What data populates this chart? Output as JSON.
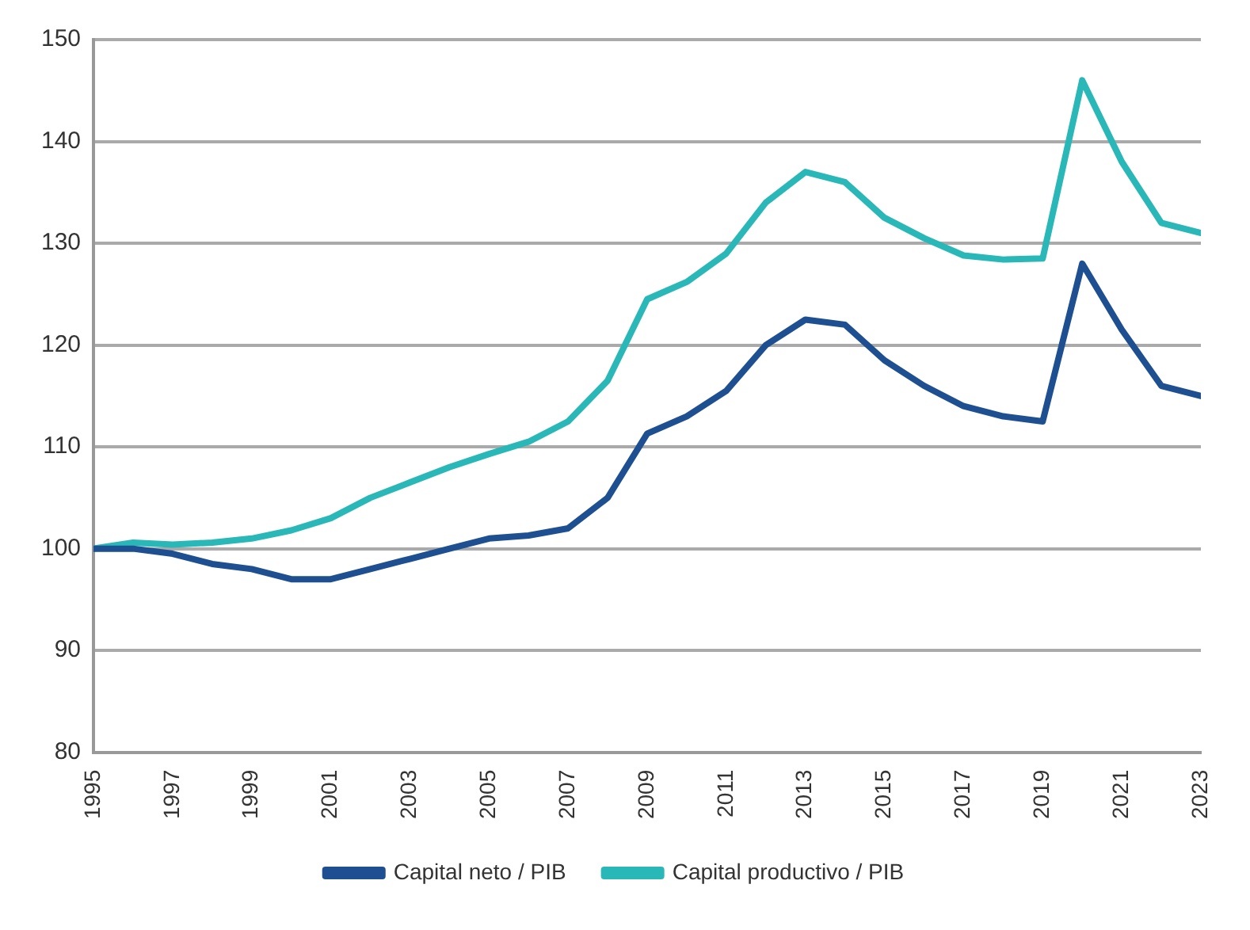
{
  "chart_data": {
    "type": "line",
    "x": [
      1995,
      1996,
      1997,
      1998,
      1999,
      2000,
      2001,
      2002,
      2003,
      2004,
      2005,
      2006,
      2007,
      2008,
      2009,
      2010,
      2011,
      2012,
      2013,
      2014,
      2015,
      2016,
      2017,
      2018,
      2019,
      2020,
      2021,
      2022,
      2023
    ],
    "series": [
      {
        "name": "Capital neto / PIB",
        "color": "#1d4f91",
        "values": [
          100,
          100,
          99.5,
          98.5,
          98,
          97,
          97,
          98,
          99,
          100,
          101,
          101.3,
          102,
          105,
          111.3,
          113,
          115.5,
          120,
          122.5,
          122,
          118.5,
          116,
          114,
          113,
          112.5,
          128,
          121.5,
          116,
          115
        ]
      },
      {
        "name": "Capital productivo / PIB",
        "color": "#2ab7b7",
        "values": [
          100,
          100.6,
          100.4,
          100.6,
          101,
          101.8,
          103,
          105,
          106.5,
          108,
          109.3,
          110.5,
          112.5,
          116.5,
          124.5,
          126.2,
          129,
          134,
          137,
          136,
          132.5,
          130.5,
          128.8,
          128.4,
          128.5,
          146,
          138,
          132,
          131
        ]
      }
    ],
    "xlim": [
      1995,
      2023
    ],
    "xticks": [
      1995,
      1997,
      1999,
      2001,
      2003,
      2005,
      2007,
      2009,
      2011,
      2013,
      2015,
      2017,
      2019,
      2021,
      2023
    ],
    "ylim": [
      80,
      150
    ],
    "yticks": [
      80,
      90,
      100,
      110,
      120,
      130,
      140,
      150
    ],
    "grid": "y",
    "legend": "bottom",
    "marker": "none",
    "line_style": "solid"
  }
}
